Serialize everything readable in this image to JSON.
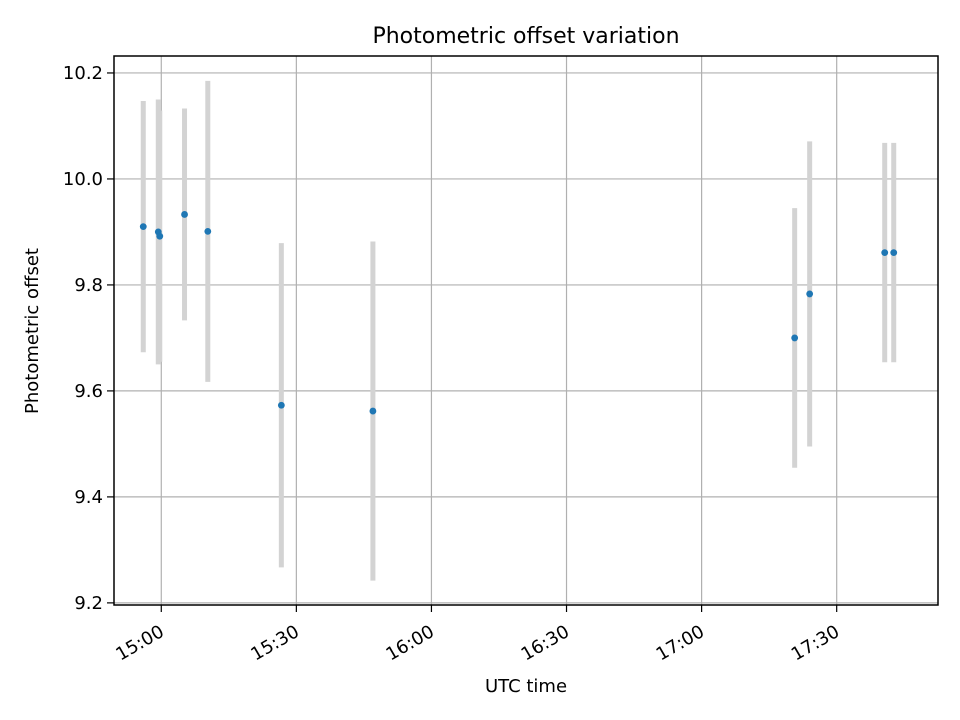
{
  "chart_data": {
    "type": "scatter",
    "title": "Photometric offset variation",
    "xlabel": "UTC time",
    "ylabel": "Photometric offset",
    "xlim": [
      "14:49:30",
      "17:52:30"
    ],
    "ylim": [
      9.196,
      10.232
    ],
    "grid": true,
    "x_ticks": [
      "15:00",
      "15:30",
      "16:00",
      "16:30",
      "17:00",
      "17:30"
    ],
    "y_ticks": [
      "9.2",
      "9.4",
      "9.6",
      "9.8",
      "10.0",
      "10.2"
    ],
    "series": [
      {
        "marker_color": "#1f77b4",
        "errorbar_color": "#d3d3d3",
        "points": [
          {
            "x": "14:56:00",
            "y": 9.91,
            "err": 0.237
          },
          {
            "x": "14:59:20",
            "y": 9.9,
            "err": 0.25
          },
          {
            "x": "14:59:40",
            "y": 9.892,
            "err": 0.237
          },
          {
            "x": "15:05:10",
            "y": 9.933,
            "err": 0.2
          },
          {
            "x": "15:10:20",
            "y": 9.901,
            "err": 0.284
          },
          {
            "x": "15:26:40",
            "y": 9.573,
            "err": 0.306
          },
          {
            "x": "15:47:00",
            "y": 9.562,
            "err": 0.32
          },
          {
            "x": "17:20:40",
            "y": 9.7,
            "err": 0.245
          },
          {
            "x": "17:24:00",
            "y": 9.783,
            "err": 0.288
          },
          {
            "x": "17:40:40",
            "y": 9.861,
            "err": 0.207
          },
          {
            "x": "17:42:40",
            "y": 9.861,
            "err": 0.207
          }
        ]
      }
    ]
  }
}
